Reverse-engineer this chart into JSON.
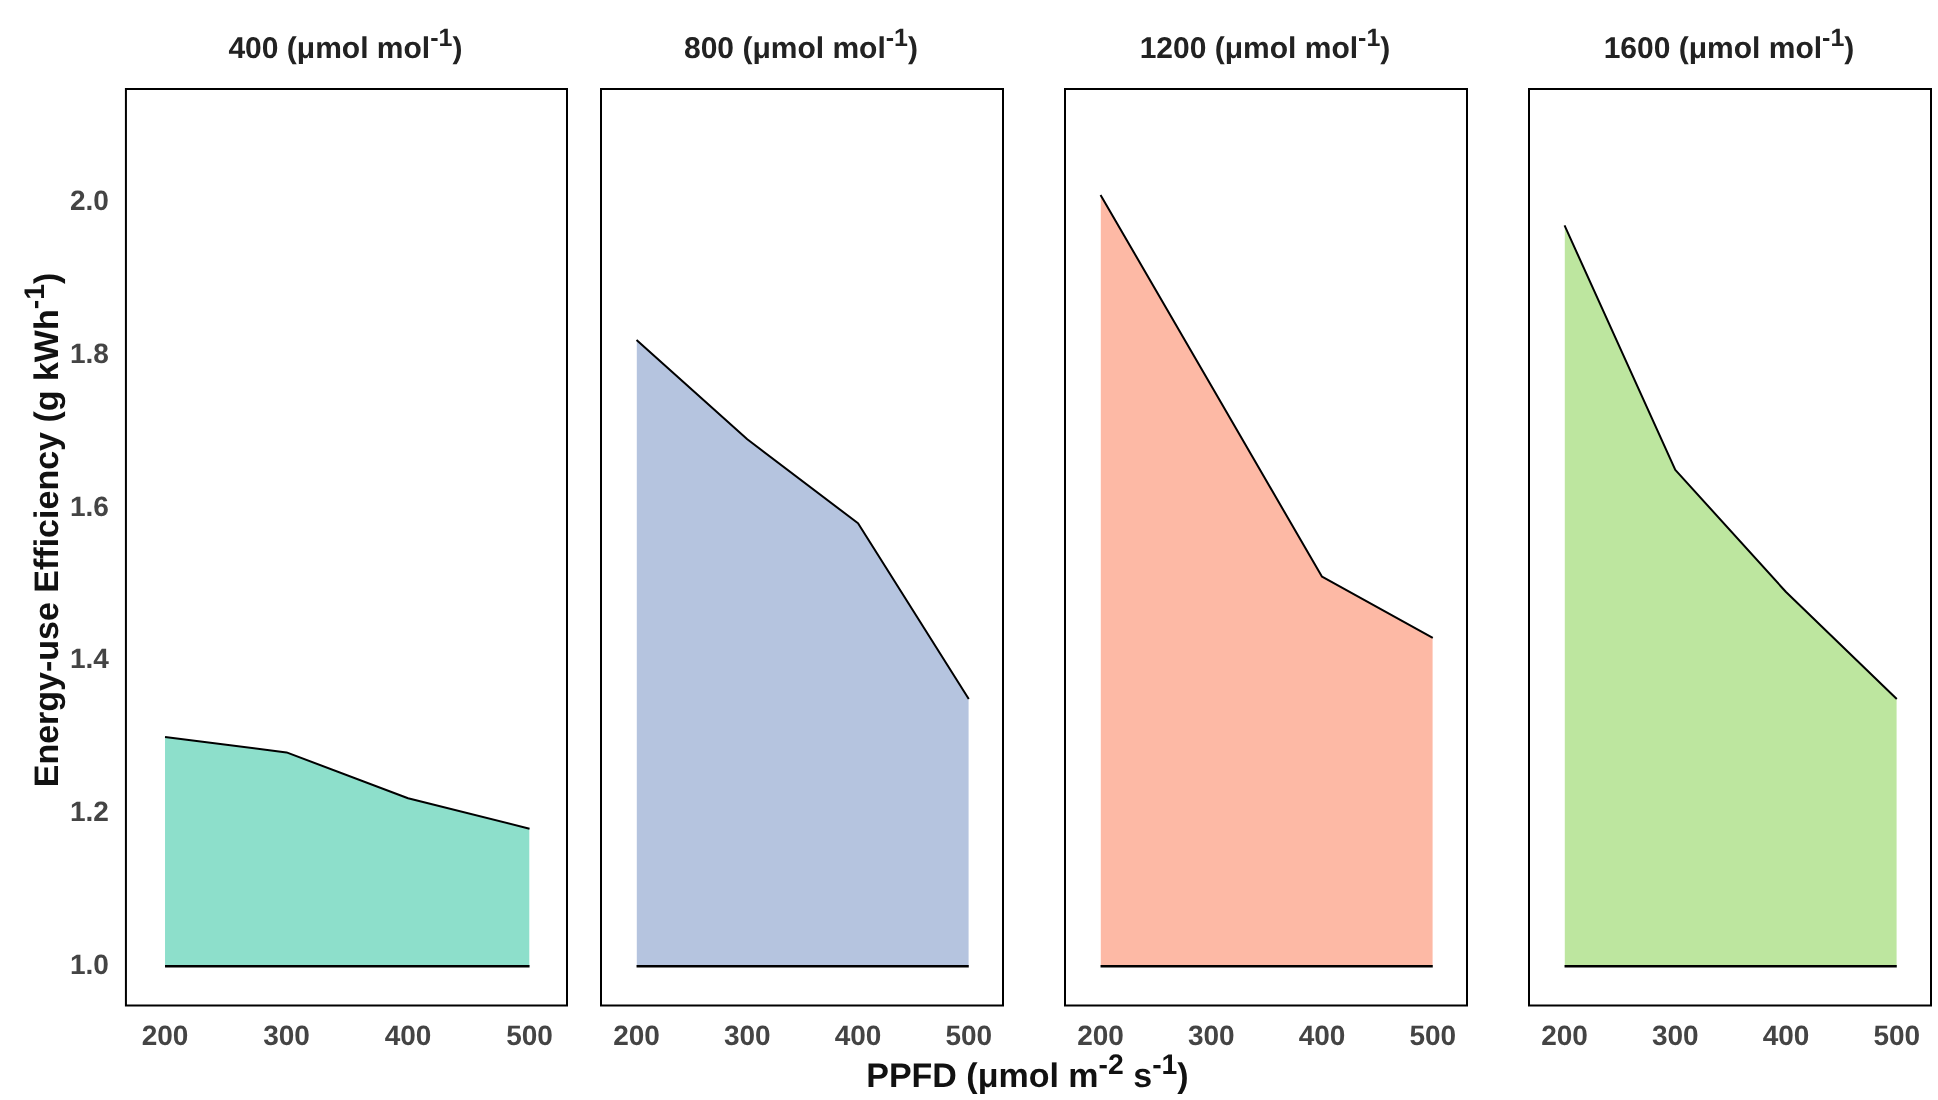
{
  "chart_data": [
    {
      "type": "area",
      "title": "400 (μmol mol$^{-1}$)",
      "ylabel": "Energy-use Efficiency (g kWh$^{-1}$)",
      "x": [
        200,
        300,
        400,
        500
      ],
      "series": [
        {
          "color": "#8ddfcb",
          "values": [
            1.3,
            1.28,
            1.22,
            1.18
          ]
        }
      ],
      "xlim": [
        167,
        530
      ],
      "xticks": [
        200,
        300,
        400,
        500
      ],
      "ylim": [
        0.95,
        2.15
      ],
      "yticks": [
        {
          "value": 1,
          "label": "1.0"
        },
        1.2,
        1.4,
        1.6,
        1.8,
        {
          "value": 2,
          "label": "2.0"
        }
      ],
      "ref_lines": [
        {
          "axis": "y",
          "value": 1.0,
          "color": "#000000"
        }
      ],
      "grid": false,
      "legend": false
    },
    {
      "type": "area",
      "title": "800 (μmol mol$^{-1}$)",
      "xlabel": "PPFD (μmol m$^{-2}$ s$^{-1}$)",
      "x": [
        200,
        300,
        400,
        500
      ],
      "series": [
        {
          "color": "#b5c4df",
          "values": [
            1.82,
            1.69,
            1.58,
            1.35
          ]
        }
      ],
      "xlim": [
        167,
        530
      ],
      "xticks": [
        200,
        300,
        400,
        500
      ],
      "ylim": [
        0.95,
        2.15
      ],
      "yticks": [
        1.0,
        1.2,
        1.4,
        1.6,
        1.8,
        2.0
      ],
      "tick_labels": "x",
      "ref_lines": [
        {
          "axis": "y",
          "value": 1.0,
          "color": "#000000"
        }
      ],
      "grid": false,
      "legend": false
    },
    {
      "type": "area",
      "title": "1200 (μmol mol$^{-1}$)",
      "x": [
        200,
        300,
        400,
        500
      ],
      "series": [
        {
          "color": "#fdb9a5",
          "values": [
            2.01,
            1.76,
            1.51,
            1.43
          ]
        }
      ],
      "xlim": [
        167,
        530
      ],
      "xticks": [
        200,
        300,
        400,
        500
      ],
      "ylim": [
        0.95,
        2.15
      ],
      "yticks": [
        1.0,
        1.2,
        1.4,
        1.6,
        1.8,
        2.0
      ],
      "tick_labels": "x",
      "ref_lines": [
        {
          "axis": "y",
          "value": 1.0,
          "color": "#000000"
        }
      ],
      "grid": false,
      "legend": false
    },
    {
      "type": "area",
      "title": "1600 (μmol mol$^{-1}$)",
      "x": [
        200,
        300,
        400,
        500
      ],
      "series": [
        {
          "color": "#bde69f",
          "values": [
            1.97,
            1.65,
            1.49,
            1.35
          ]
        }
      ],
      "xlim": [
        167,
        530
      ],
      "xticks": [
        200,
        300,
        400,
        500
      ],
      "ylim": [
        0.95,
        2.15
      ],
      "yticks": [
        1.0,
        1.2,
        1.4,
        1.6,
        1.8,
        2.0
      ],
      "tick_labels": "x",
      "ref_lines": [
        {
          "axis": "y",
          "value": 1.0,
          "color": "#000000"
        }
      ],
      "grid": false,
      "legend": false
    }
  ]
}
